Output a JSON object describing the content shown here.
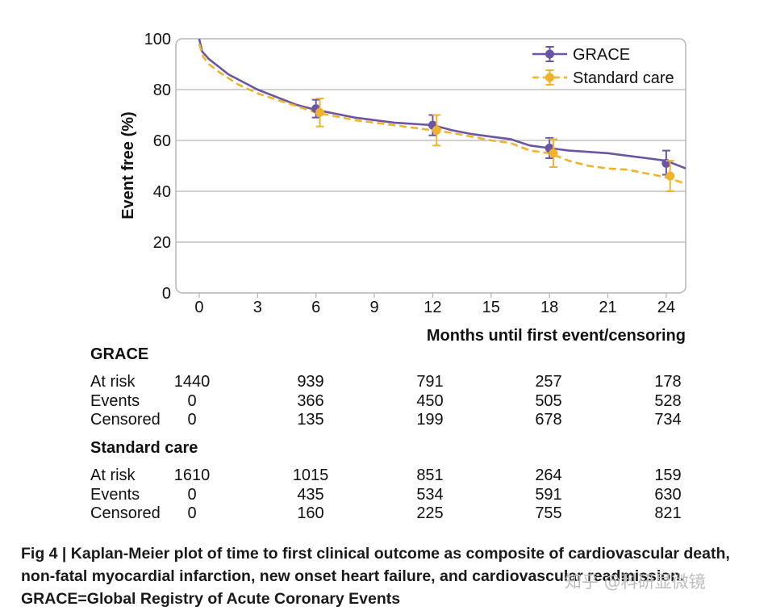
{
  "chart_data": {
    "type": "line",
    "ylabel": "Event free (%)",
    "xlabel": "Months until first event/censoring",
    "xlim": [
      -1.2,
      25.0
    ],
    "ylim": [
      0,
      100
    ],
    "xticks": [
      0,
      3,
      6,
      9,
      12,
      15,
      18,
      21,
      24
    ],
    "yticks": [
      0,
      20,
      40,
      60,
      80,
      100
    ],
    "legend_position": "top-right",
    "series": [
      {
        "name": "GRACE",
        "color": "#6b55a3",
        "style": "solid",
        "curve": [
          [
            0,
            100
          ],
          [
            0.15,
            95
          ],
          [
            0.5,
            92
          ],
          [
            1,
            89
          ],
          [
            1.5,
            86
          ],
          [
            2,
            84
          ],
          [
            3,
            80
          ],
          [
            4,
            77
          ],
          [
            5,
            74
          ],
          [
            6,
            72
          ],
          [
            7,
            70.5
          ],
          [
            8,
            69
          ],
          [
            9,
            68
          ],
          [
            10,
            67
          ],
          [
            11,
            66.5
          ],
          [
            12,
            66
          ],
          [
            13,
            64
          ],
          [
            14,
            62.5
          ],
          [
            15,
            61.5
          ],
          [
            16,
            60.5
          ],
          [
            17,
            58
          ],
          [
            18,
            57
          ],
          [
            19,
            56
          ],
          [
            20,
            55.5
          ],
          [
            21,
            55
          ],
          [
            22,
            54
          ],
          [
            23,
            53
          ],
          [
            24,
            52
          ],
          [
            25,
            49
          ]
        ],
        "points": [
          {
            "x": 6,
            "y": 72.5,
            "lo": 69,
            "hi": 76
          },
          {
            "x": 12,
            "y": 66,
            "lo": 62,
            "hi": 70
          },
          {
            "x": 18,
            "y": 57,
            "lo": 53,
            "hi": 61
          },
          {
            "x": 24,
            "y": 51,
            "lo": 46.5,
            "hi": 56
          }
        ]
      },
      {
        "name": "Standard care",
        "color": "#f0b32b",
        "style": "dashed",
        "curve": [
          [
            0,
            98
          ],
          [
            0.2,
            93
          ],
          [
            0.5,
            90
          ],
          [
            1,
            87
          ],
          [
            1.5,
            84.5
          ],
          [
            2,
            82
          ],
          [
            3,
            78.5
          ],
          [
            4,
            76
          ],
          [
            5,
            73.5
          ],
          [
            6,
            71
          ],
          [
            7,
            69.5
          ],
          [
            8,
            68
          ],
          [
            9,
            67
          ],
          [
            10,
            66
          ],
          [
            11,
            65
          ],
          [
            12,
            64
          ],
          [
            13,
            63
          ],
          [
            14,
            61.5
          ],
          [
            15,
            60
          ],
          [
            16,
            59
          ],
          [
            17,
            56
          ],
          [
            18,
            55
          ],
          [
            19,
            52
          ],
          [
            20,
            50
          ],
          [
            21,
            49
          ],
          [
            22,
            48.5
          ],
          [
            23,
            47
          ],
          [
            24,
            45.5
          ],
          [
            25,
            43
          ]
        ],
        "points": [
          {
            "x": 6.2,
            "y": 71,
            "lo": 65.5,
            "hi": 76.5
          },
          {
            "x": 12.2,
            "y": 64,
            "lo": 58,
            "hi": 70
          },
          {
            "x": 18.2,
            "y": 55,
            "lo": 49.5,
            "hi": 60.5
          },
          {
            "x": 24.2,
            "y": 46,
            "lo": 40,
            "hi": 52
          }
        ]
      }
    ]
  },
  "risk_table": {
    "columns": [
      0,
      6,
      12,
      18,
      24
    ],
    "groups": [
      {
        "title": "GRACE",
        "rows": [
          {
            "label": "At risk",
            "values": [
              "1440",
              "939",
              "791",
              "257",
              "178"
            ]
          },
          {
            "label": "Events",
            "values": [
              "0",
              "366",
              "450",
              "505",
              "528"
            ]
          },
          {
            "label": "Censored",
            "values": [
              "0",
              "135",
              "199",
              "678",
              "734"
            ]
          }
        ]
      },
      {
        "title": "Standard care",
        "rows": [
          {
            "label": "At risk",
            "values": [
              "1610",
              "1015",
              "851",
              "264",
              "159"
            ]
          },
          {
            "label": "Events",
            "values": [
              "0",
              "435",
              "534",
              "591",
              "630"
            ]
          },
          {
            "label": "Censored",
            "values": [
              "0",
              "160",
              "225",
              "755",
              "821"
            ]
          }
        ]
      }
    ]
  },
  "caption": "Fig 4 | Kaplan-Meier plot of time to first clinical outcome as composite of cardiovascular death, non-fatal myocardial infarction, new onset heart failure, and cardiovascular readmission. GRACE=Global Registry of Acute Coronary Events",
  "watermark": "知乎 @科研显微镜"
}
